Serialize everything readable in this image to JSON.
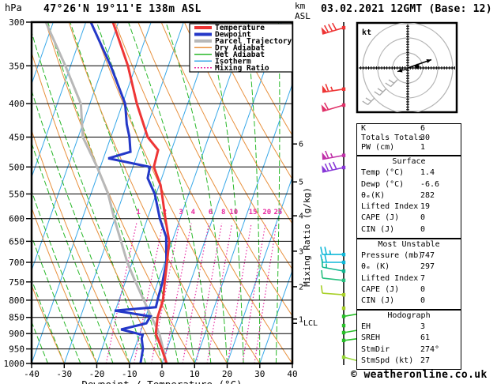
{
  "header": {
    "station": "47°26'N 19°11'E 138m ASL",
    "datetime": "03.02.2021 12GMT (Base: 12)",
    "pressure_unit": "hPa",
    "altitude_unit_line1": "km",
    "altitude_unit_line2": "ASL"
  },
  "footer": {
    "copyright": "© weatheronline.co.uk"
  },
  "legend": {
    "items": [
      {
        "label": "Temperature",
        "color": "#ee3535",
        "width": 4,
        "dash": ""
      },
      {
        "label": "Dewpoint",
        "color": "#2438c8",
        "width": 4,
        "dash": ""
      },
      {
        "label": "Parcel Trajectory",
        "color": "#b8b8b8",
        "width": 4,
        "dash": ""
      },
      {
        "label": "Dry Adiabat",
        "color": "#e8913e",
        "width": 1.5,
        "dash": ""
      },
      {
        "label": "Wet Adiabat",
        "color": "#28b828",
        "width": 1.5,
        "dash": ""
      },
      {
        "label": "Isotherm",
        "color": "#38a8e8",
        "width": 1.5,
        "dash": ""
      },
      {
        "label": "Mixing Ratio",
        "color": "#e828a0",
        "width": 1.5,
        "dash": "2,2"
      }
    ]
  },
  "chart_data": {
    "type": "line",
    "subtype": "skewt-log-p-sounding",
    "title": "47°26'N 19°11'E 138m ASL",
    "xlabel": "Dewpoint / Temperature (°C)",
    "ylabel": "hPa",
    "mixing_axis_label": "Mixing Ratio (g/kg)",
    "x_ticks": [
      -40,
      -30,
      -20,
      -10,
      0,
      10,
      20,
      30,
      40
    ],
    "xlim": [
      -40,
      40
    ],
    "pressure_ticks": [
      300,
      350,
      400,
      450,
      500,
      550,
      600,
      650,
      700,
      750,
      800,
      850,
      900,
      950,
      1000
    ],
    "pressure_range": [
      300,
      1000
    ],
    "isotherm_step_c": 10,
    "dry_adiabat_step_k": 10,
    "wet_adiabat_step_c": 5,
    "mixing_ratio_values": [
      1,
      2,
      3,
      4,
      6,
      8,
      10,
      15,
      20,
      25
    ],
    "km_ticks": [
      {
        "km": 6,
        "p": 461
      },
      {
        "km": 5,
        "p": 527
      },
      {
        "km": 4,
        "p": 594
      },
      {
        "km": 3,
        "p": 673
      },
      {
        "km": 2,
        "p": 763
      },
      {
        "km": 1,
        "p": 855
      }
    ],
    "lcl": {
      "label": "LCL",
      "p": 868
    },
    "series": {
      "temperature": {
        "name": "Temperature",
        "color": "#ee3535",
        "points": [
          [
            300,
            -51.7
          ],
          [
            350,
            -42.4
          ],
          [
            400,
            -35.6
          ],
          [
            450,
            -28.7
          ],
          [
            471,
            -24.1
          ],
          [
            500,
            -23.6
          ],
          [
            533,
            -19.6
          ],
          [
            550,
            -18.2
          ],
          [
            600,
            -14.5
          ],
          [
            650,
            -10.9
          ],
          [
            700,
            -9.3
          ],
          [
            750,
            -7.9
          ],
          [
            800,
            -6.5
          ],
          [
            850,
            -6.3
          ],
          [
            900,
            -5.1
          ],
          [
            950,
            -1.6
          ],
          [
            1000,
            1.4
          ]
        ]
      },
      "dewpoint": {
        "name": "Dewpoint",
        "color": "#2438c8",
        "points": [
          [
            300,
            -58.5
          ],
          [
            350,
            -47.7
          ],
          [
            400,
            -39.2
          ],
          [
            430,
            -36.5
          ],
          [
            450,
            -34.3
          ],
          [
            474,
            -32.4
          ],
          [
            485,
            -38.5
          ],
          [
            500,
            -24.8
          ],
          [
            520,
            -24.3
          ],
          [
            550,
            -20.4
          ],
          [
            600,
            -16.2
          ],
          [
            640,
            -12.3
          ],
          [
            700,
            -9.5
          ],
          [
            750,
            -8.6
          ],
          [
            796,
            -8.2
          ],
          [
            820,
            -7.9
          ],
          [
            830,
            -20.2
          ],
          [
            847,
            -8.6
          ],
          [
            868,
            -9.1
          ],
          [
            887,
            -16.2
          ],
          [
            904,
            -9.0
          ],
          [
            916,
            -8.9
          ],
          [
            950,
            -7.4
          ],
          [
            1000,
            -6.6
          ]
        ]
      },
      "parcel": {
        "name": "Parcel Trajectory",
        "color": "#b8b8b8",
        "points": [
          [
            300,
            -72.3
          ],
          [
            350,
            -61.6
          ],
          [
            400,
            -52.8
          ],
          [
            450,
            -48.6
          ],
          [
            500,
            -41.0
          ],
          [
            550,
            -34.7
          ],
          [
            600,
            -30.2
          ],
          [
            700,
            -21.5
          ],
          [
            740,
            -17.8
          ],
          [
            800,
            -12.4
          ],
          [
            902,
            -3.9
          ],
          [
            1000,
            1.4
          ]
        ]
      }
    },
    "wind_barbs": [
      {
        "p": 306,
        "color": "#ee3535",
        "side": "left",
        "tilt": -8,
        "flag": 1,
        "full": 3,
        "half": 0
      },
      {
        "p": 380,
        "color": "#ee3535",
        "side": "left",
        "tilt": -4,
        "flag": 1,
        "full": 1,
        "half": 1
      },
      {
        "p": 402,
        "color": "#e03068",
        "side": "left",
        "tilt": -8,
        "flag": 1,
        "full": 1,
        "half": 0
      },
      {
        "p": 480,
        "color": "#c030a8",
        "side": "left",
        "tilt": -5,
        "flag": 1,
        "full": 1,
        "half": 1
      },
      {
        "p": 501,
        "color": "#8838d8",
        "side": "left",
        "tilt": -6,
        "flag": 1,
        "full": 3,
        "half": 0
      },
      {
        "p": 681,
        "color": "#10b8d8",
        "side": "left",
        "tilt": 0,
        "flag": 0,
        "full": 2,
        "half": 1
      },
      {
        "p": 700,
        "color": "#10b8d8",
        "side": "left",
        "tilt": 0,
        "flag": 0,
        "full": 2,
        "half": 0
      },
      {
        "p": 722,
        "color": "#10b890",
        "side": "left",
        "tilt": 5,
        "flag": 0,
        "full": 1,
        "half": 1
      },
      {
        "p": 746,
        "color": "#28c080",
        "side": "left",
        "tilt": 3,
        "flag": 0,
        "full": 1,
        "half": 0
      },
      {
        "p": 785,
        "color": "#a8d028",
        "side": "left",
        "tilt": 2,
        "flag": 0,
        "full": 1,
        "half": 0
      },
      {
        "p": 823,
        "color": "#a8d028",
        "calm": 1
      },
      {
        "p": 847,
        "color": "#28c028",
        "side": "right",
        "tilt": 4,
        "flag": 0,
        "full": 1,
        "half": 1
      },
      {
        "p": 875,
        "color": "#28c028",
        "calm": 1
      },
      {
        "p": 897,
        "color": "#28c028",
        "side": "right",
        "tilt": 4,
        "flag": 0,
        "full": 1,
        "half": 0
      },
      {
        "p": 922,
        "color": "#28c028",
        "side": "right",
        "tilt": 3,
        "flag": 0,
        "full": 1,
        "half": 0
      },
      {
        "p": 978,
        "color": "#98d838",
        "side": "right",
        "tilt": -6,
        "flag": 0,
        "full": 0,
        "half": 1
      }
    ]
  },
  "hodograph": {
    "unit": "kt",
    "storm_dir_deg": 274,
    "storm_spd_kt": 27
  },
  "panel": {
    "tables": [
      {
        "title": "",
        "rows": [
          [
            "K",
            "6"
          ],
          [
            "Totals Totals",
            "30"
          ],
          [
            "PW (cm)",
            "1"
          ]
        ]
      },
      {
        "title": "Surface",
        "rows": [
          [
            "Temp (°C)",
            "1.4"
          ],
          [
            "Dewp (°C)",
            "-6.6"
          ],
          [
            "θₑ(K)",
            "282"
          ],
          [
            "Lifted Index",
            "19"
          ],
          [
            "CAPE (J)",
            "0"
          ],
          [
            "CIN (J)",
            "0"
          ]
        ]
      },
      {
        "title": "Most Unstable",
        "rows": [
          [
            "Pressure (mb)",
            "747"
          ],
          [
            "θₑ (K)",
            "297"
          ],
          [
            "Lifted Index",
            "7"
          ],
          [
            "CAPE (J)",
            "0"
          ],
          [
            "CIN (J)",
            "0"
          ]
        ]
      },
      {
        "title": "Hodograph",
        "rows": [
          [
            "EH",
            "3"
          ],
          [
            "SREH",
            "61"
          ],
          [
            "StmDir",
            "274°"
          ],
          [
            "StmSpd (kt)",
            "27"
          ]
        ]
      }
    ]
  },
  "colors": {
    "temperature": "#ee3535",
    "dewpoint": "#2438c8",
    "parcel": "#b8b8b8",
    "dry_adiabat": "#e8913e",
    "wet_adiabat": "#28b828",
    "isotherm": "#38a8e8",
    "mixing_ratio": "#e828a0",
    "frame": "#000000",
    "hodo_ring": "#b4b4b4"
  }
}
